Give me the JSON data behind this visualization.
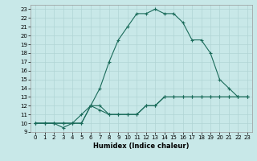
{
  "xlabel": "Humidex (Indice chaleur)",
  "bg_color": "#c8e8e8",
  "line_color": "#1a6b5a",
  "grid_color": "#b0d4d4",
  "xlim": [
    -0.5,
    23.5
  ],
  "ylim": [
    9,
    23.5
  ],
  "xticks": [
    0,
    1,
    2,
    3,
    4,
    5,
    6,
    7,
    8,
    9,
    10,
    11,
    12,
    13,
    14,
    15,
    16,
    17,
    18,
    19,
    20,
    21,
    22,
    23
  ],
  "yticks": [
    9,
    10,
    11,
    12,
    13,
    14,
    15,
    16,
    17,
    18,
    19,
    20,
    21,
    22,
    23
  ],
  "line1_x": [
    0,
    1,
    2,
    3,
    4,
    5,
    6,
    7,
    8,
    9,
    10,
    11,
    12,
    13,
    14,
    15,
    16,
    17,
    18,
    19,
    20,
    21,
    22,
    23
  ],
  "line1_y": [
    10,
    10,
    10,
    9.5,
    10,
    10,
    12,
    12,
    11,
    11,
    11,
    11,
    12,
    12,
    13,
    13,
    13,
    13,
    13,
    13,
    13,
    13,
    13,
    13
  ],
  "line2_x": [
    0,
    1,
    2,
    3,
    4,
    5,
    6,
    7,
    8,
    9,
    10,
    11,
    12,
    13,
    14,
    15,
    16,
    17,
    18,
    19,
    20,
    21,
    22,
    23
  ],
  "line2_y": [
    10,
    10,
    10,
    10,
    10,
    11,
    12,
    14,
    17,
    19.5,
    21,
    22.5,
    22.5,
    23,
    22.5,
    22.5,
    21.5,
    19.5,
    19.5,
    18,
    15,
    14,
    13,
    13
  ],
  "line3_x": [
    0,
    1,
    2,
    3,
    4,
    5,
    6,
    7,
    8,
    9,
    10,
    11,
    12,
    13,
    14,
    15,
    16,
    17,
    18,
    19,
    20,
    21,
    22,
    23
  ],
  "line3_y": [
    10,
    10,
    10,
    10,
    10,
    10,
    12,
    11.5,
    11,
    11,
    11,
    11,
    12,
    12,
    13,
    13,
    13,
    13,
    13,
    13,
    13,
    13,
    13,
    13
  ]
}
